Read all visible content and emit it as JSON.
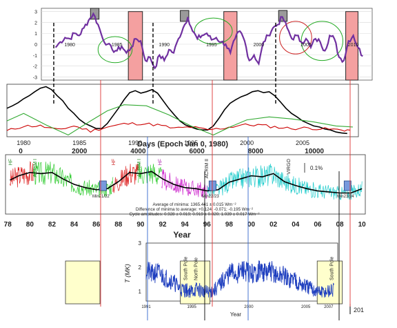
{
  "chart_data": [
    {
      "type": "line",
      "panel": "top-index",
      "x_ticks": [
        "1980",
        "1985",
        "1990",
        "1995",
        "2000",
        "2005",
        "2010"
      ],
      "y_ticks": [
        "3",
        "2",
        "1",
        "0",
        "-1",
        "-2",
        "-3"
      ],
      "xlim": [
        1977,
        2012
      ],
      "ylim": [
        -3.3,
        3.3
      ],
      "grid": true,
      "line_color": "#7030a0",
      "series": [
        {
          "x": [
            1978.5,
            1979,
            1979.5,
            1980,
            1980.5,
            1981,
            1981.5,
            1982,
            1982.5,
            1983,
            1983.5,
            1984,
            1984.5,
            1985,
            1985.5,
            1986,
            1986.5,
            1987,
            1987.5,
            1988,
            1988.5,
            1989,
            1989.5,
            1990,
            1990.5,
            1991,
            1991.5,
            1992,
            1992.5,
            1993,
            1993.5,
            1994,
            1994.5,
            1995,
            1995.5,
            1996,
            1996.5,
            1997,
            1997.5,
            1998,
            1998.5,
            1999,
            1999.5,
            2000,
            2000.5,
            2001,
            2001.5,
            2002,
            2002.5,
            2003,
            2003.5,
            2004,
            2004.5,
            2005,
            2005.5,
            2006,
            2006.5,
            2007,
            2007.5,
            2008,
            2008.5,
            2009,
            2009.5,
            2010,
            2010.5,
            2011
          ],
          "y": [
            -0.3,
            0.2,
            0.6,
            0.5,
            1.0,
            0.8,
            1.5,
            2.2,
            2.8,
            1.8,
            0.5,
            0.0,
            -0.5,
            -0.6,
            -0.2,
            -0.8,
            -0.3,
            0.5,
            0.3,
            -1.5,
            -1.2,
            -2.2,
            -1.0,
            -1.5,
            -0.5,
            -0.8,
            0.5,
            1.5,
            2.5,
            1.2,
            0.5,
            0.8,
            1.0,
            0.4,
            0.6,
            0.2,
            0.0,
            -0.8,
            0.5,
            1.2,
            0.3,
            -1.5,
            -1.0,
            -1.8,
            0.2,
            0.8,
            1.5,
            1.8,
            2.5,
            1.5,
            0.5,
            0.8,
            0.2,
            0.5,
            -0.3,
            0.5,
            0.2,
            -0.6,
            0.8,
            0.5,
            -1.2,
            -1.5,
            0.3,
            0.8,
            -0.3,
            -1.1
          ]
        }
      ],
      "markers": {
        "grey_boxes": [
          {
            "x0": 1982.2,
            "x1": 1983.1,
            "y0": 2.3,
            "y1": 3.3
          },
          {
            "x0": 1991.7,
            "x1": 1992.6,
            "y0": 2.1,
            "y1": 3.1
          },
          {
            "x0": 2002.1,
            "x1": 2003.0,
            "y0": 2.1,
            "y1": 3.1
          }
        ],
        "pink_boxes": [
          {
            "x0": 1986.2,
            "x1": 1987.7,
            "y0": -3.3,
            "y1": 3.0
          },
          {
            "x0": 1996.3,
            "x1": 1997.7,
            "y0": -3.3,
            "y1": 3.0
          },
          {
            "x0": 2009.2,
            "x1": 2010.5,
            "y0": -3.3,
            "y1": 3.0
          }
        ],
        "green_ellipses": [
          {
            "cx": 1984.8,
            "cy": -0.5,
            "rx": 1.8,
            "ry": 1.2
          },
          {
            "cx": 1995.2,
            "cy": 1.2,
            "rx": 2.0,
            "ry": 1.2
          },
          {
            "cx": 2006.7,
            "cy": 0.3,
            "rx": 2.2,
            "ry": 1.8
          }
        ],
        "red_ellipses": [
          {
            "cx": 2003.9,
            "cy": 0.6,
            "rx": 1.7,
            "ry": 1.5
          }
        ]
      }
    },
    {
      "type": "line",
      "panel": "solar-cycle",
      "title": "",
      "x_top_ticks": [
        "1980",
        "1985",
        "1990",
        "1995",
        "2000",
        "2005"
      ],
      "x_bottom_ticks": [
        "0",
        "2000",
        "4000",
        "6000",
        "8000",
        "10000"
      ],
      "xlabel": "Days (Epoch Jan 0, 1980)",
      "xlim": [
        1978.5,
        2010
      ],
      "ylim": [
        0,
        1
      ],
      "series": [
        {
          "color": "#000000",
          "x": [
            1978.5,
            1979,
            1979.5,
            1980,
            1980.5,
            1981,
            1981.5,
            1982,
            1982.5,
            1983,
            1983.5,
            1984,
            1984.5,
            1985,
            1985.5,
            1986,
            1986.5,
            1987,
            1987.5,
            1988,
            1988.5,
            1989,
            1989.5,
            1990,
            1990.5,
            1991,
            1991.5,
            1992,
            1992.5,
            1993,
            1993.5,
            1994,
            1994.5,
            1995,
            1995.5,
            1996,
            1996.5,
            1997,
            1997.5,
            1998,
            1998.5,
            1999,
            1999.5,
            2000,
            2000.5,
            2001,
            2001.5,
            2002,
            2002.5,
            2003,
            2003.5,
            2004,
            2004.5,
            2005,
            2005.5,
            2006,
            2006.5,
            2007,
            2007.5,
            2008,
            2008.5,
            2009
          ],
          "y": [
            0.55,
            0.6,
            0.66,
            0.74,
            0.8,
            0.88,
            0.95,
            0.98,
            0.92,
            0.8,
            0.7,
            0.55,
            0.45,
            0.33,
            0.25,
            0.2,
            0.15,
            0.15,
            0.25,
            0.4,
            0.55,
            0.72,
            0.86,
            0.9,
            0.85,
            0.88,
            0.92,
            0.85,
            0.7,
            0.55,
            0.42,
            0.3,
            0.22,
            0.18,
            0.14,
            0.12,
            0.12,
            0.2,
            0.35,
            0.52,
            0.65,
            0.72,
            0.78,
            0.82,
            0.88,
            0.9,
            0.86,
            0.88,
            0.8,
            0.68,
            0.55,
            0.45,
            0.38,
            0.3,
            0.25,
            0.2,
            0.18,
            0.14,
            0.12,
            0.08,
            0.06,
            0.05
          ]
        },
        {
          "color": "#cc0000",
          "x": [
            1978.5,
            1980,
            1981.5,
            1983,
            1984.5,
            1986,
            1987.5,
            1989,
            1990.5,
            1992,
            1993.5,
            1995,
            1996.5,
            1998,
            1999.5,
            2001,
            2002.5,
            2004,
            2005.5,
            2007,
            2008.5,
            2009.5
          ],
          "y": [
            0.1,
            0.2,
            0.2,
            0.12,
            0.2,
            0.1,
            0.18,
            0.24,
            0.25,
            0.22,
            0.15,
            0.18,
            0.12,
            0.16,
            0.22,
            0.22,
            0.18,
            0.15,
            0.16,
            0.14,
            0.12,
            0.12
          ]
        },
        {
          "color": "#33aa33",
          "x": [
            1978.5,
            1980,
            1982,
            1984,
            1986,
            1987.5,
            1989,
            1991,
            1993,
            1995,
            1997,
            1998.5,
            2000,
            2002,
            2004,
            2006,
            2008,
            2009.5
          ],
          "y": [
            0.3,
            0.45,
            0.22,
            0.02,
            0.3,
            0.5,
            0.62,
            0.6,
            0.42,
            0.2,
            0.02,
            0.18,
            0.32,
            0.38,
            0.34,
            0.28,
            0.2,
            0.18
          ]
        }
      ]
    },
    {
      "type": "line",
      "panel": "tsi-composite",
      "x_ticks": [
        "78",
        "80",
        "82",
        "84",
        "86",
        "88",
        "90",
        "92",
        "94",
        "96",
        "98",
        "00",
        "02",
        "04",
        "06",
        "08",
        "10"
      ],
      "xlabel": "Year",
      "instrument_labels": [
        "HF",
        "ACRIM I",
        "HF",
        "ACRIM I",
        "HF",
        "ACRIM II",
        "VIRGO"
      ],
      "scale_label": "0.1%",
      "minima_labels": [
        "Min21/22",
        "Min22/23",
        "Min23/24"
      ],
      "annotations": [
        "Average of minima: 1365.441 ± 0.015 Wm⁻²",
        "Difference of minima to average: +0.124; -0.071; -0.195 Wm⁻²",
        "Cycle amplitudes: 0.928 ± 0.019; 0.919 ± 0.020; 1.039 ± 0.017 Wm⁻²"
      ],
      "ylim": [
        0,
        1
      ],
      "series": [
        {
          "name": "composite",
          "x": [
            1978.2,
            1979,
            1980,
            1981,
            1982,
            1983,
            1984,
            1985,
            1986,
            1987,
            1988,
            1989,
            1990,
            1991,
            1992,
            1993,
            1994,
            1995,
            1996,
            1997,
            1998,
            1999,
            2000,
            2001,
            2002,
            2003,
            2004,
            2005,
            2006,
            2007,
            2008,
            2009,
            2010
          ],
          "y": [
            0.58,
            0.66,
            0.72,
            0.7,
            0.72,
            0.6,
            0.5,
            0.44,
            0.4,
            0.42,
            0.55,
            0.72,
            0.7,
            0.74,
            0.6,
            0.5,
            0.44,
            0.42,
            0.38,
            0.4,
            0.54,
            0.6,
            0.66,
            0.64,
            0.7,
            0.55,
            0.48,
            0.42,
            0.38,
            0.36,
            0.34,
            0.34,
            0.42
          ]
        }
      ]
    },
    {
      "type": "line",
      "panel": "temperature",
      "x_ticks": [
        "1991",
        "1995",
        "2000",
        "2005",
        "2007"
      ],
      "xlabel": "Year",
      "ylabel": "T (MK)",
      "y_ticks": [
        "1",
        "2",
        "3"
      ],
      "xlim": [
        1991,
        2007.8
      ],
      "ylim": [
        0.6,
        3
      ],
      "overflow_tick": "201",
      "vertical_labels": [
        "South Pole",
        "North Pole",
        "South Pole"
      ],
      "series": [
        {
          "color": "#1f3fbf",
          "x": [
            1991,
            1991.5,
            1992,
            1992.5,
            1993,
            1993.5,
            1994,
            1994.5,
            1995,
            1995.5,
            1996,
            1996.5,
            1997,
            1997.5,
            1998,
            1998.5,
            1999,
            1999.5,
            2000,
            2000.5,
            2001,
            2001.5,
            2002,
            2002.5,
            2003,
            2003.5,
            2004,
            2004.5,
            2005,
            2005.5,
            2006,
            2006.5,
            2007,
            2007.5
          ],
          "y": [
            1.9,
            1.7,
            1.8,
            1.6,
            1.5,
            1.35,
            1.1,
            1.05,
            1.0,
            1.1,
            1.0,
            0.95,
            1.05,
            1.3,
            1.6,
            1.8,
            1.7,
            1.9,
            1.8,
            1.7,
            1.9,
            1.75,
            1.85,
            1.6,
            1.7,
            1.45,
            1.55,
            1.3,
            1.2,
            1.1,
            1.0,
            0.95,
            1.0,
            1.05
          ]
        }
      ]
    }
  ]
}
